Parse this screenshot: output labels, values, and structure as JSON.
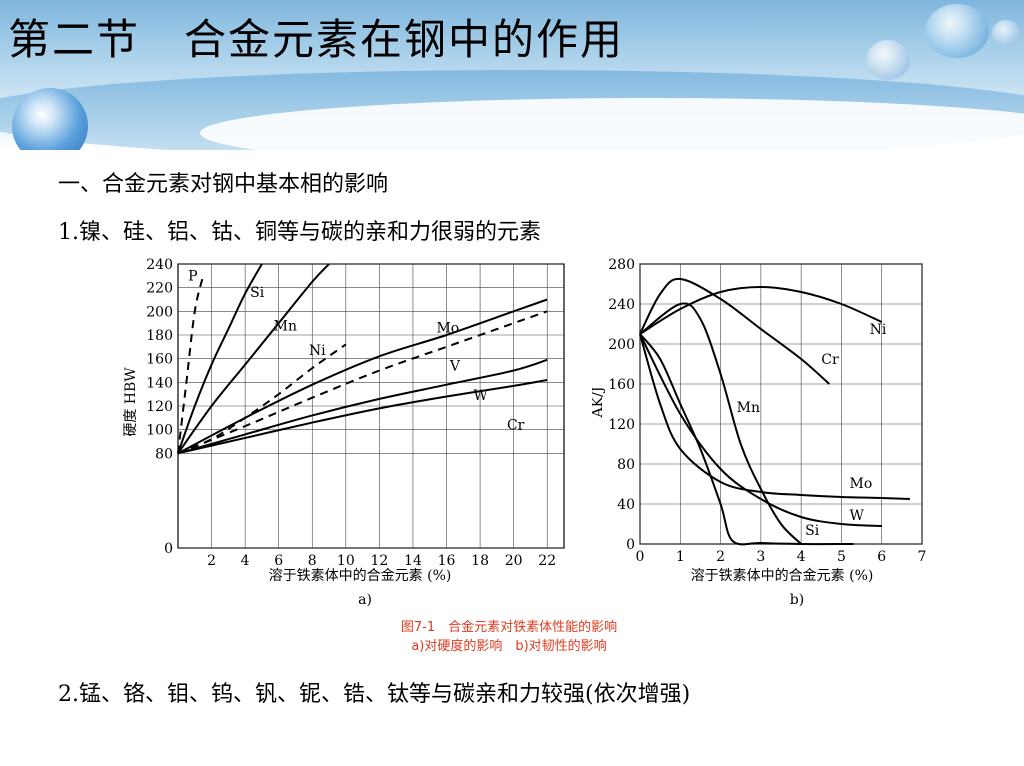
{
  "slide": {
    "title": "第二节　合金元素在钢中的作用",
    "subheading": "一、合金元素对钢中基本相的影响",
    "point1": "1.镍、硅、铝、钴、铜等与碳的亲和力很弱的元素",
    "point2": "2.锰、铬、钼、钨、钒、铌、锆、钛等与碳亲和力较强(依次增强)"
  },
  "figure": {
    "caption": "图7-1　合金元素对铁素体性能的影响",
    "subcaption": "a)对硬度的影响　b)对韧性的影响"
  },
  "colors": {
    "caption": "#e03a1e",
    "header": "#7fb6dd"
  },
  "chart_data": [
    {
      "type": "line",
      "panel_label": "a)",
      "xlabel": "溶于铁素体中的合金元素 (%)",
      "ylabel": "硬度 HBW",
      "xlim": [
        0,
        23
      ],
      "ylim": [
        0,
        240
      ],
      "xticks": [
        2,
        4,
        6,
        8,
        10,
        12,
        14,
        16,
        18,
        20,
        22
      ],
      "yticks": [
        0,
        80,
        100,
        120,
        140,
        160,
        180,
        200,
        220,
        240
      ],
      "grid": true,
      "series": [
        {
          "name": "P",
          "style": "dashed",
          "x": [
            0,
            0.5,
            1,
            1.5
          ],
          "y": [
            80,
            140,
            200,
            230
          ]
        },
        {
          "name": "Si",
          "style": "solid",
          "x": [
            0,
            1,
            2,
            3,
            4,
            5
          ],
          "y": [
            80,
            120,
            155,
            185,
            215,
            240
          ]
        },
        {
          "name": "Mn",
          "style": "solid",
          "x": [
            0,
            2,
            4,
            6,
            8,
            9
          ],
          "y": [
            80,
            120,
            155,
            190,
            225,
            240
          ]
        },
        {
          "name": "Ni",
          "style": "dashed",
          "x": [
            0,
            2,
            4,
            6,
            8,
            10
          ],
          "y": [
            80,
            92,
            110,
            130,
            152,
            172
          ]
        },
        {
          "name": "Mo",
          "style": "solid",
          "x": [
            0,
            4,
            8,
            12,
            16,
            20,
            22
          ],
          "y": [
            80,
            110,
            138,
            162,
            180,
            200,
            210
          ]
        },
        {
          "name": "V",
          "style": "dashed",
          "x": [
            0,
            4,
            8,
            12,
            16,
            20,
            22
          ],
          "y": [
            80,
            103,
            127,
            150,
            170,
            190,
            200
          ]
        },
        {
          "name": "W",
          "style": "solid",
          "x": [
            0,
            4,
            8,
            12,
            16,
            20,
            22
          ],
          "y": [
            80,
            96,
            112,
            126,
            138,
            150,
            159
          ]
        },
        {
          "name": "Cr",
          "style": "solid",
          "x": [
            0,
            4,
            8,
            12,
            16,
            20,
            22
          ],
          "y": [
            80,
            93,
            106,
            118,
            128,
            137,
            142
          ]
        }
      ]
    },
    {
      "type": "line",
      "panel_label": "b)",
      "xlabel": "溶于铁素体中的合金元素 (%)",
      "ylabel": "AK/J",
      "xlim": [
        0,
        7
      ],
      "ylim": [
        0,
        280
      ],
      "xticks": [
        0,
        1,
        2,
        3,
        4,
        5,
        6,
        7
      ],
      "yticks": [
        0,
        40,
        80,
        120,
        160,
        200,
        240,
        280
      ],
      "grid": true,
      "series": [
        {
          "name": "Ni",
          "x": [
            0,
            1,
            2,
            3,
            4,
            5,
            6
          ],
          "y": [
            210,
            235,
            252,
            257,
            252,
            240,
            222
          ]
        },
        {
          "name": "Cr",
          "x": [
            0,
            0.5,
            1,
            2,
            3,
            4,
            4.7
          ],
          "y": [
            210,
            250,
            265,
            245,
            215,
            185,
            160
          ]
        },
        {
          "name": "Mn",
          "x": [
            0,
            1,
            1.5,
            2,
            2.5,
            3,
            3.5,
            4
          ],
          "y": [
            210,
            240,
            225,
            170,
            100,
            55,
            20,
            0
          ]
        },
        {
          "name": "Mo",
          "x": [
            0,
            0.5,
            1,
            2,
            3,
            4,
            5,
            6,
            6.7
          ],
          "y": [
            210,
            140,
            95,
            62,
            52,
            49,
            47,
            46,
            45
          ]
        },
        {
          "name": "W",
          "x": [
            0,
            1,
            2,
            3,
            4,
            5,
            6
          ],
          "y": [
            210,
            130,
            75,
            45,
            27,
            20,
            18
          ]
        },
        {
          "name": "Si",
          "x": [
            0,
            0.5,
            1,
            1.5,
            2,
            2.3,
            3,
            4,
            5.3
          ],
          "y": [
            210,
            185,
            140,
            95,
            40,
            3,
            1,
            0,
            0
          ]
        }
      ]
    }
  ]
}
